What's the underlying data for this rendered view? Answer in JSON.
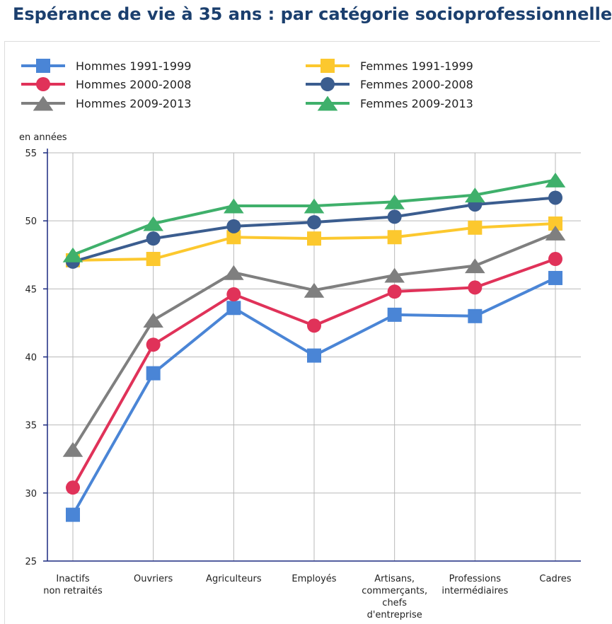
{
  "title": "Espérance de vie à 35 ans : par catégorie socioprofessionnelle",
  "chart_data": {
    "type": "line",
    "ylabel": "en années",
    "xlabel": "",
    "ylim": [
      25,
      55
    ],
    "yticks": [
      25,
      30,
      35,
      40,
      45,
      50,
      55
    ],
    "grid": true,
    "legend_position": "top",
    "categories": [
      [
        "Inactifs",
        "non retraités"
      ],
      [
        "Ouvriers"
      ],
      [
        "Agriculteurs"
      ],
      [
        "Employés"
      ],
      [
        "Artisans,",
        "commerçants,",
        "chefs",
        "d'entreprise"
      ],
      [
        "Professions",
        "intermédiaires"
      ],
      [
        "Cadres"
      ]
    ],
    "series": [
      {
        "name": "Hommes 1991-1999",
        "color": "#4a85d6",
        "marker": "square",
        "values": [
          28.4,
          38.8,
          43.6,
          40.1,
          43.1,
          43.0,
          45.8
        ]
      },
      {
        "name": "Femmes 1991-1999",
        "color": "#fcc82e",
        "marker": "square",
        "values": [
          47.1,
          47.2,
          48.8,
          48.7,
          48.8,
          49.5,
          49.8
        ]
      },
      {
        "name": "Hommes 2000-2008",
        "color": "#e03259",
        "marker": "circle",
        "values": [
          30.4,
          40.9,
          44.6,
          42.3,
          44.8,
          45.1,
          47.2
        ]
      },
      {
        "name": "Femmes 2000-2008",
        "color": "#3b5d8f",
        "marker": "circle",
        "values": [
          47.0,
          48.7,
          49.6,
          49.9,
          50.3,
          51.2,
          51.7
        ]
      },
      {
        "name": "Hommes 2009-2013",
        "color": "#7f7f7f",
        "marker": "triangle",
        "values": [
          33.2,
          42.7,
          46.2,
          44.9,
          46.0,
          46.7,
          49.1
        ]
      },
      {
        "name": "Femmes 2009-2013",
        "color": "#3fb06b",
        "marker": "triangle",
        "values": [
          47.5,
          49.8,
          51.1,
          51.1,
          51.4,
          51.9,
          53.0
        ]
      }
    ]
  }
}
